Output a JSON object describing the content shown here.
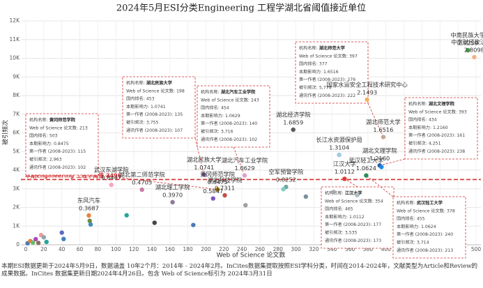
{
  "chart_data": {
    "type": "scatter",
    "title": "2024年5月ESI分类Engineering  工程学湖北省阈值接近单位",
    "x_label": "Web of Science 论文数",
    "y_label": "被引频次",
    "xlim": [
      0,
      500
    ],
    "ylim": [
      0,
      12000
    ],
    "xticks": [
      0,
      20,
      40,
      60,
      80,
      100,
      120,
      140,
      160,
      180,
      200,
      220,
      240,
      260,
      280,
      300,
      320,
      340,
      360,
      380,
      400,
      420,
      440,
      460,
      480,
      500
    ],
    "yticks": [
      0,
      {
        "value": 1000,
        "label": "1K"
      },
      {
        "value": 2000,
        "label": "2K"
      },
      {
        "value": 3000,
        "label": "3K"
      },
      {
        "value": 4000,
        "label": "4K"
      },
      {
        "value": 5000,
        "label": "5K"
      },
      {
        "value": 6000,
        "label": "6K"
      },
      {
        "value": 7000,
        "label": "7K"
      },
      {
        "value": 8000,
        "label": "8K"
      },
      {
        "value": 9000,
        "label": "9K"
      },
      {
        "value": 10000,
        "label": "10K"
      },
      {
        "value": 11000,
        "label": "11K"
      },
      {
        "value": 12000,
        "label": "12K"
      }
    ],
    "grid": true,
    "threshold": {
      "label": "本期Engineering 工程学阈值",
      "value": 3496,
      "color": "#d32f2f"
    },
    "points": [
      {
        "label": "中南民族大学",
        "impact": "2.9259",
        "x": 491,
        "y": 10430,
        "color": "#43a047"
      },
      {
        "label": "中南财经政法大学",
        "impact": "2.8098",
        "x": 498,
        "y": 10060,
        "color": "#f4b183"
      },
      {
        "label": "国家水运安全工程技术研究中心",
        "impact": "2.1493",
        "x": 379,
        "y": 7780,
        "color": "#f0b060"
      },
      {
        "label": "湖北经济学院",
        "impact": "1.6859",
        "x": 297,
        "y": 6170,
        "color": "#5a5a5a"
      },
      {
        "label": "湖北师范大学",
        "impact": "1.6516",
        "x": 397,
        "y": 5774,
        "color": "#c9a59a"
      },
      {
        "label": "长江水资源保护局",
        "impact": "1.3104",
        "x": 348,
        "y": 4820,
        "color": "#9ec9e2"
      },
      {
        "label": "湖北文理学院",
        "impact": "1.2160",
        "x": 393,
        "y": 4251,
        "color": "#2c5aa0"
      },
      {
        "label": "湖北民族大学",
        "impact": "1.0741",
        "x": 198,
        "y": 3755,
        "color": "#8e6bbf"
      },
      {
        "label": "湖北汽车工业学院",
        "impact": "1.0629",
        "x": 243,
        "y": 3716,
        "color": "#e0a0d0"
      },
      {
        "label": "武汉轻工大学",
        "impact": "1.0624",
        "x": 378,
        "y": 3714,
        "color": "#2e8b57"
      },
      {
        "label": "江汉大学",
        "impact": "1.0112",
        "x": 354,
        "y": 3535,
        "color": "#e53935"
      },
      {
        "label": "黄冈师范学院",
        "impact": "0.8475",
        "x": 213,
        "y": 2963,
        "color": "#b8860b"
      },
      {
        "label": "武汉东湖学院",
        "impact": "0.8447",
        "x": 95,
        "y": 3210,
        "color": "#f4a6c0"
      },
      {
        "label": "空军预警学院",
        "impact": "0.8252",
        "x": 289,
        "y": 3100,
        "color": "#6fa8a0"
      },
      {
        "label": "湖北科技学院",
        "impact": "0.7311",
        "x": 221,
        "y": 2650,
        "color": "#c0504d"
      },
      {
        "impact": "0.5847",
        "x": 208,
        "y": 2480,
        "color": "#7e57c2"
      },
      {
        "label": "湖北第二师范学院",
        "impact": "0.4705",
        "x": 129,
        "y": 2950,
        "color": "#c77ca6"
      },
      {
        "label": "湖北理工学院",
        "impact": "0.3970",
        "x": 163,
        "y": 2280,
        "color": "#8c7b9a"
      },
      {
        "label": "东风汽车",
        "impact": "0.3687",
        "x": 70,
        "y": 1570,
        "color": "#e8833a"
      },
      {
        "x": 2,
        "y": 80,
        "color": "#4a7ab5"
      },
      {
        "x": 5,
        "y": 200,
        "color": "#e8833a"
      },
      {
        "x": 8,
        "y": 120,
        "color": "#66bb6a"
      },
      {
        "x": 11,
        "y": 300,
        "color": "#ab47bc"
      },
      {
        "x": 14,
        "y": 100,
        "color": "#8d6e63"
      },
      {
        "x": 17,
        "y": 520,
        "color": "#ef9a9a"
      },
      {
        "x": 20,
        "y": 400,
        "color": "#90a4ae"
      },
      {
        "x": 23,
        "y": 150,
        "color": "#26a69a"
      },
      {
        "x": 40,
        "y": 650,
        "color": "#5c6bc0"
      },
      {
        "x": 42,
        "y": 310,
        "color": "#3f7fbf"
      },
      {
        "x": 71,
        "y": 1280,
        "color": "#6d8b3a"
      },
      {
        "x": 72,
        "y": 1090,
        "color": "#3c8dbc"
      },
      {
        "x": 112,
        "y": 1580,
        "color": "#26a69a"
      },
      {
        "x": 143,
        "y": 1180,
        "color": "#444"
      },
      {
        "x": 186,
        "y": 1060,
        "color": "#4a7ab5"
      },
      {
        "x": 244,
        "y": 2120,
        "color": "#9e9e9e"
      },
      {
        "x": 286,
        "y": 2980,
        "color": "#80cbc4"
      },
      {
        "x": 311,
        "y": 2580,
        "color": "#78909c"
      },
      {
        "x": 342,
        "y": 2830,
        "color": "#aaa"
      },
      {
        "x": 368,
        "y": 2660,
        "color": "#b0bec5"
      },
      {
        "x": 395,
        "y": 4170,
        "color": "#1e88e5"
      }
    ],
    "box_fields": [
      "机构名称:",
      "Web of Science 论文数:",
      "国内排名:",
      "本期影响力:",
      "第一作者 (2008-2023):",
      "被引频次:",
      "通讯作者 (2008-2023):"
    ],
    "boxes": [
      [
        "黄冈师范学院",
        "213",
        "503",
        "0.8475",
        "115",
        "2,963",
        "102"
      ],
      [
        "湖北民族大学",
        "198",
        "453",
        "1.0741",
        "135",
        "3,755",
        "107"
      ],
      [
        "湖北汽车工业学院",
        "243",
        "454",
        "1.0629",
        "140",
        "3,716",
        "102"
      ],
      [
        "湖北师范大学",
        "397",
        "377",
        "1.6516",
        "276",
        "5,774",
        "222"
      ],
      [
        "湖北文理学院",
        "393",
        "434",
        "1.2160",
        "161",
        "4,251",
        "238"
      ],
      [
        "江汉大学",
        "354",
        "465",
        "1.0112",
        "177",
        "3,535",
        "173"
      ],
      [
        "武汉轻工大学",
        "378",
        "455",
        "1.0624",
        "240",
        "3,714",
        "213"
      ]
    ],
    "note": "本期ESI数据更新于2024年5月9日，数据涵盖 10年2个月：2014年 - 2024年2月。InCites数据集提取按照ESI学科分类，时间在2014-2024年，文献类型为Article和Review的成果数据。InCites 数据集更新日期2024年4月26日。包含 Web of Science标引为 2024年3月31日"
  }
}
